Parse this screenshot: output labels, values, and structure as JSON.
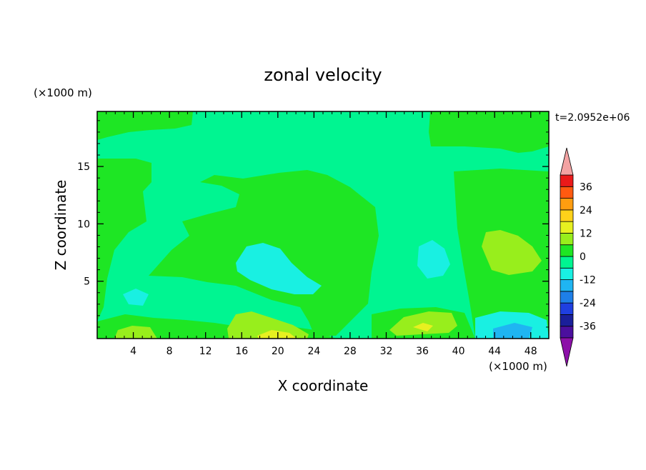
{
  "chart_data": {
    "type": "heatmap",
    "title": "zonal velocity",
    "xlabel": "X coordinate",
    "ylabel": "Z coordinate",
    "x_unit": "(×1000 m)",
    "y_unit": "(×1000 m)",
    "time_label": "t=2.0952e+06",
    "xlim": [
      0,
      50
    ],
    "ylim": [
      0,
      19.8
    ],
    "x_ticks": [
      4,
      8,
      12,
      16,
      20,
      24,
      28,
      32,
      36,
      40,
      44,
      48
    ],
    "y_ticks": [
      5,
      10,
      15
    ],
    "colorbar": {
      "levels": [
        -42,
        -36,
        -30,
        -24,
        -18,
        -12,
        -6,
        0,
        6,
        12,
        18,
        24,
        30,
        36,
        42
      ],
      "labels": [
        "36",
        "24",
        "12",
        "0",
        "-12",
        "-24",
        "-36"
      ],
      "label_values": [
        36,
        24,
        12,
        0,
        -12,
        -24,
        -36
      ],
      "colors": [
        "#4b0f9e",
        "#1a1f9a",
        "#1f3fe0",
        "#1e7fe8",
        "#1fb5f2",
        "#19f0e2",
        "#00f591",
        "#1ee624",
        "#98ee1c",
        "#e7f020",
        "#ffd21a",
        "#ff9d10",
        "#ff5a10",
        "#ea1a1a"
      ],
      "under_color": "#8c10a8",
      "over_color": "#f3a3a3"
    },
    "field_colors": {
      "dark_green": "#1ee624",
      "light_green": "#00f591",
      "cyan": "#19f0e2",
      "light_blue": "#1fb5f2",
      "yellow_green": "#98ee1c",
      "yellow": "#e7f020"
    }
  }
}
